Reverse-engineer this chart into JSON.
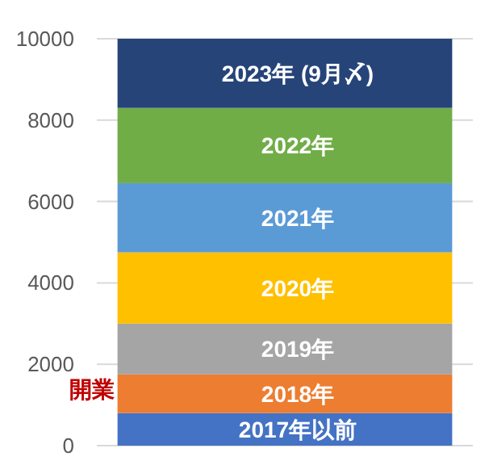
{
  "chart_data": {
    "type": "bar",
    "stacked": true,
    "categories": [
      null
    ],
    "series": [
      {
        "name": "2017年以前",
        "color": "#4472c4",
        "values": [
          800
        ]
      },
      {
        "name": "2018年",
        "color": "#ed7d31",
        "values": [
          950
        ]
      },
      {
        "name": "2019年",
        "color": "#a5a5a5",
        "values": [
          1250
        ]
      },
      {
        "name": "2020年",
        "color": "#ffc000",
        "values": [
          1750
        ]
      },
      {
        "name": "2021年",
        "color": "#5b9bd5",
        "values": [
          1700
        ]
      },
      {
        "name": "2022年",
        "color": "#70ad47",
        "values": [
          1850
        ]
      },
      {
        "name": "2023年 (9月〆)",
        "color": "#264478",
        "values": [
          1700
        ]
      }
    ],
    "ylim": [
      0,
      10000
    ],
    "yticks": [
      0,
      2000,
      4000,
      6000,
      8000,
      10000
    ],
    "grid": "y",
    "annotations": [
      "開業"
    ]
  }
}
